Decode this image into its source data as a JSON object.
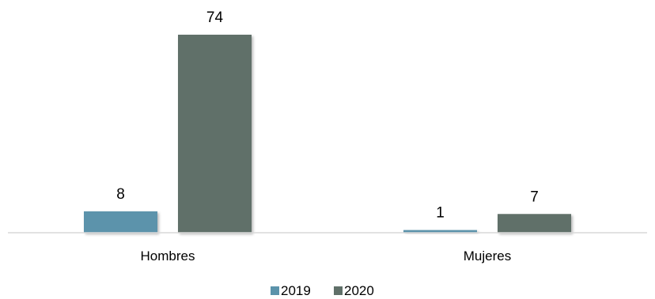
{
  "chart_data": {
    "type": "bar",
    "title": "",
    "xlabel": "",
    "ylabel": "",
    "categories": [
      "Hombres",
      "Mujeres"
    ],
    "series": [
      {
        "name": "2019",
        "values": [
          8,
          1
        ],
        "color": "#5b93ab"
      },
      {
        "name": "2020",
        "values": [
          74,
          7
        ],
        "color": "#607069"
      }
    ],
    "ylim": [
      0,
      74
    ],
    "grid": false,
    "legend_position": "bottom-center",
    "data_labels": true,
    "axis_color": "#d9d9d9"
  }
}
